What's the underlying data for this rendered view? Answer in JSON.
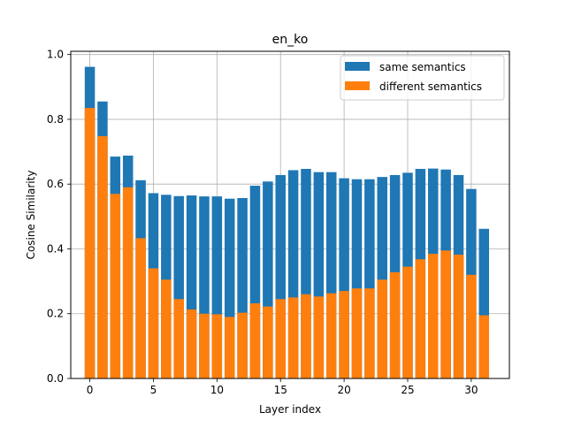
{
  "chart_data": {
    "type": "bar",
    "title": "en_ko",
    "xlabel": "Layer index",
    "ylabel": "Cosine Similarity",
    "xlim": [
      -1.5,
      33
    ],
    "ylim": [
      0,
      1.01
    ],
    "xticks": [
      0,
      5,
      10,
      15,
      20,
      25,
      30
    ],
    "yticks": [
      0.0,
      0.2,
      0.4,
      0.6,
      0.8,
      1.0
    ],
    "grid": true,
    "legend_position": "top-right",
    "x": [
      0,
      1,
      2,
      3,
      4,
      5,
      6,
      7,
      8,
      9,
      10,
      11,
      12,
      13,
      14,
      15,
      16,
      17,
      18,
      19,
      20,
      21,
      22,
      23,
      24,
      25,
      26,
      27,
      28,
      29,
      30,
      31
    ],
    "series": [
      {
        "name": "same semantics",
        "color": "#1f77b4",
        "values": [
          0.962,
          0.855,
          0.685,
          0.688,
          0.612,
          0.572,
          0.567,
          0.563,
          0.565,
          0.562,
          0.562,
          0.555,
          0.557,
          0.595,
          0.608,
          0.628,
          0.643,
          0.647,
          0.637,
          0.637,
          0.618,
          0.615,
          0.615,
          0.622,
          0.628,
          0.635,
          0.647,
          0.648,
          0.645,
          0.628,
          0.585,
          0.462
        ]
      },
      {
        "name": "different semantics",
        "color": "#ff7f0e",
        "values": [
          0.835,
          0.748,
          0.57,
          0.59,
          0.433,
          0.34,
          0.305,
          0.245,
          0.213,
          0.2,
          0.198,
          0.19,
          0.203,
          0.232,
          0.222,
          0.245,
          0.25,
          0.26,
          0.253,
          0.263,
          0.27,
          0.278,
          0.278,
          0.305,
          0.328,
          0.345,
          0.368,
          0.385,
          0.395,
          0.382,
          0.32,
          0.195
        ]
      }
    ]
  }
}
